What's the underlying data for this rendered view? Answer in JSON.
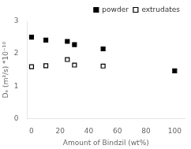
{
  "chart_data": {
    "type": "scatter",
    "xlabel": "Amount of Bindzil (wt%)",
    "ylabel": "Dₑ (m²/s) *10⁻¹⁰",
    "series": [
      {
        "name": "powder",
        "color": "#000000",
        "marker": "square-filled",
        "x": [
          0,
          10,
          25,
          30,
          50,
          100
        ],
        "values": [
          2.51,
          2.42,
          2.38,
          2.28,
          2.15,
          1.47
        ]
      },
      {
        "name": "extrudates",
        "color": "#000000",
        "marker": "square-open",
        "x": [
          0,
          10,
          25,
          30,
          50
        ],
        "values": [
          1.6,
          1.63,
          1.82,
          1.65,
          1.62
        ]
      }
    ],
    "xlim": [
      -3,
      107
    ],
    "xticks": [
      0,
      20,
      40,
      60,
      80,
      100
    ],
    "ylim": [
      0,
      3.0
    ],
    "yticks": [
      0,
      1,
      2,
      3
    ],
    "grid": false,
    "legend": "upper right"
  }
}
